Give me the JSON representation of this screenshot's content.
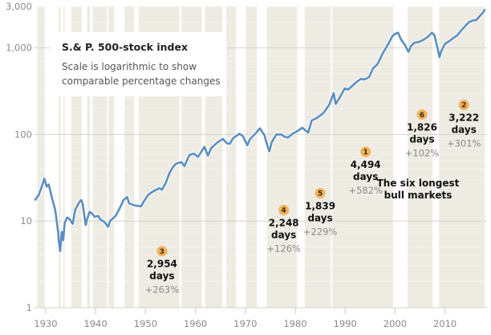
{
  "chart_data": {
    "type": "line",
    "title": "S.& P. 500-stock index",
    "subtitle": "Scale is logarithmic to show comparable percentage changes",
    "xlabel": "",
    "ylabel": "",
    "yscale": "log",
    "ylim": [
      1,
      3000
    ],
    "xlim": [
      1928,
      2018
    ],
    "y_ticks": [
      {
        "value": 1,
        "label": "1"
      },
      {
        "value": 10,
        "label": "10"
      },
      {
        "value": 100,
        "label": "100"
      },
      {
        "value": 1000,
        "label": "1,000"
      },
      {
        "value": 3000,
        "label": "3,000"
      }
    ],
    "x_ticks": [
      {
        "value": 1930,
        "label": "1930"
      },
      {
        "value": 1940,
        "label": "1940"
      },
      {
        "value": 1950,
        "label": "1950"
      },
      {
        "value": 1960,
        "label": "1960"
      },
      {
        "value": 1970,
        "label": "1970"
      },
      {
        "value": 1980,
        "label": "1980"
      },
      {
        "value": 1990,
        "label": "1990"
      },
      {
        "value": 2000,
        "label": "2000"
      },
      {
        "value": 2010,
        "label": "2010"
      }
    ],
    "grid": true,
    "line_color": "#5b8fc0",
    "band_color": "#eeebe3",
    "series": [
      {
        "name": "S.& P. 500",
        "points": [
          [
            1927.8,
            17.3
          ],
          [
            1928.6,
            20
          ],
          [
            1929.4,
            27
          ],
          [
            1929.7,
            31
          ],
          [
            1930.2,
            25
          ],
          [
            1930.6,
            26.5
          ],
          [
            1931.3,
            18
          ],
          [
            1931.9,
            13.5
          ],
          [
            1932.5,
            7.5
          ],
          [
            1932.6,
            6.0
          ],
          [
            1932.9,
            4.5
          ],
          [
            1933.2,
            7.5
          ],
          [
            1933.5,
            6.0
          ],
          [
            1933.8,
            9.5
          ],
          [
            1934.3,
            11.0
          ],
          [
            1934.8,
            10.5
          ],
          [
            1935.4,
            9.3
          ],
          [
            1935.9,
            13.5
          ],
          [
            1936.7,
            16.5
          ],
          [
            1937.1,
            17.5
          ],
          [
            1937.4,
            16
          ],
          [
            1938.0,
            9.0
          ],
          [
            1938.3,
            10.5
          ],
          [
            1938.8,
            12.8
          ],
          [
            1939.3,
            12.2
          ],
          [
            1939.8,
            11.2
          ],
          [
            1940.5,
            11.5
          ],
          [
            1940.9,
            10.5
          ],
          [
            1941.8,
            9.7
          ],
          [
            1942.5,
            8.6
          ],
          [
            1942.9,
            10
          ],
          [
            1944.0,
            11.5
          ],
          [
            1944.8,
            14
          ],
          [
            1945.6,
            17.5
          ],
          [
            1946.3,
            19
          ],
          [
            1946.7,
            16
          ],
          [
            1947.4,
            15.5
          ],
          [
            1948.2,
            15
          ],
          [
            1949.1,
            14.8
          ],
          [
            1949.7,
            17
          ],
          [
            1950.5,
            20
          ],
          [
            1951.5,
            22
          ],
          [
            1952.8,
            24
          ],
          [
            1953.3,
            23
          ],
          [
            1954.1,
            28
          ],
          [
            1954.8,
            36
          ],
          [
            1955.5,
            42
          ],
          [
            1956.1,
            46
          ],
          [
            1957.2,
            48
          ],
          [
            1957.8,
            43
          ],
          [
            1958.8,
            58
          ],
          [
            1959.7,
            60
          ],
          [
            1960.5,
            55
          ],
          [
            1961.8,
            72
          ],
          [
            1962.5,
            57
          ],
          [
            1963.2,
            70
          ],
          [
            1964.4,
            81
          ],
          [
            1965.5,
            89
          ],
          [
            1966.3,
            79
          ],
          [
            1966.9,
            78
          ],
          [
            1967.5,
            90
          ],
          [
            1968.8,
            102
          ],
          [
            1969.5,
            96
          ],
          [
            1970.4,
            75
          ],
          [
            1970.9,
            88
          ],
          [
            1972.2,
            105
          ],
          [
            1972.9,
            118
          ],
          [
            1973.8,
            99
          ],
          [
            1974.4,
            75
          ],
          [
            1974.8,
            64
          ],
          [
            1975.3,
            82
          ],
          [
            1976.2,
            100
          ],
          [
            1977.2,
            100
          ],
          [
            1977.8,
            95
          ],
          [
            1978.5,
            92
          ],
          [
            1979.5,
            102
          ],
          [
            1980.5,
            110
          ],
          [
            1981.4,
            120
          ],
          [
            1982.0,
            112
          ],
          [
            1982.6,
            105
          ],
          [
            1983.3,
            145
          ],
          [
            1984.3,
            155
          ],
          [
            1985.6,
            175
          ],
          [
            1986.8,
            220
          ],
          [
            1987.7,
            300
          ],
          [
            1988.1,
            225
          ],
          [
            1988.8,
            260
          ],
          [
            1989.9,
            340
          ],
          [
            1990.6,
            330
          ],
          [
            1991.2,
            355
          ],
          [
            1992.2,
            400
          ],
          [
            1993.2,
            440
          ],
          [
            1993.8,
            430
          ],
          [
            1994.8,
            460
          ],
          [
            1995.6,
            580
          ],
          [
            1996.5,
            650
          ],
          [
            1997.6,
            880
          ],
          [
            1998.6,
            1100
          ],
          [
            1999.4,
            1350
          ],
          [
            1999.9,
            1440
          ],
          [
            2000.6,
            1500
          ],
          [
            2001.2,
            1250
          ],
          [
            2001.9,
            1100
          ],
          [
            2002.7,
            900
          ],
          [
            2003.2,
            1050
          ],
          [
            2003.9,
            1150
          ],
          [
            2004.8,
            1170
          ],
          [
            2005.8,
            1250
          ],
          [
            2006.6,
            1350
          ],
          [
            2007.4,
            1500
          ],
          [
            2007.9,
            1400
          ],
          [
            2008.5,
            1000
          ],
          [
            2008.9,
            780
          ],
          [
            2009.2,
            900
          ],
          [
            2010.0,
            1110
          ],
          [
            2010.8,
            1190
          ],
          [
            2011.6,
            1290
          ],
          [
            2012.5,
            1400
          ],
          [
            2013.3,
            1600
          ],
          [
            2014.1,
            1800
          ],
          [
            2014.9,
            2000
          ],
          [
            2015.7,
            2080
          ],
          [
            2016.3,
            2100
          ],
          [
            2016.9,
            2300
          ],
          [
            2017.6,
            2550
          ],
          [
            2018.0,
            2800
          ]
        ]
      }
    ],
    "bands": [
      [
        1928.3,
        1929.8
      ],
      [
        1932.6,
        1933.0
      ],
      [
        1933.5,
        1933.8
      ],
      [
        1935.1,
        1937.2
      ],
      [
        1938.3,
        1938.9
      ],
      [
        1939.4,
        1942.3
      ],
      [
        1942.6,
        1943.7
      ],
      [
        1945.8,
        1947.7
      ],
      [
        1948.6,
        1956.8
      ],
      [
        1957.2,
        1961.3
      ],
      [
        1961.9,
        1965.4
      ],
      [
        1966.2,
        1968.1
      ],
      [
        1970.1,
        1972.3
      ],
      [
        1974.3,
        1980.4
      ],
      [
        1981.9,
        1987.1
      ],
      [
        1987.4,
        1999.6
      ],
      [
        2002.5,
        2007.5
      ],
      [
        2008.8,
        2018.0
      ]
    ],
    "annotations": [
      {
        "rank": "3",
        "days": "2,954",
        "unit": "days",
        "change": "+263%",
        "year": 1953.3,
        "value": 4.5
      },
      {
        "rank": "4",
        "days": "2,248",
        "unit": "days",
        "change": "+126%",
        "year": 1977.7,
        "value": 13.4
      },
      {
        "rank": "5",
        "days": "1,839",
        "unit": "days",
        "change": "+229%",
        "year": 1985.0,
        "value": 21
      },
      {
        "rank": "1",
        "days": "4,494",
        "unit": "days",
        "change": "+582%",
        "year": 1994.1,
        "value": 63
      },
      {
        "rank": "6",
        "days": "1,826",
        "unit": "days",
        "change": "+102%",
        "year": 2005.4,
        "value": 170
      },
      {
        "rank": "2",
        "days": "3,222",
        "unit": "days",
        "change": "+301%",
        "year": 2013.8,
        "value": 220
      }
    ],
    "note": [
      "The six longest",
      "bull markets"
    ],
    "badge_color": "#f2b35c"
  }
}
